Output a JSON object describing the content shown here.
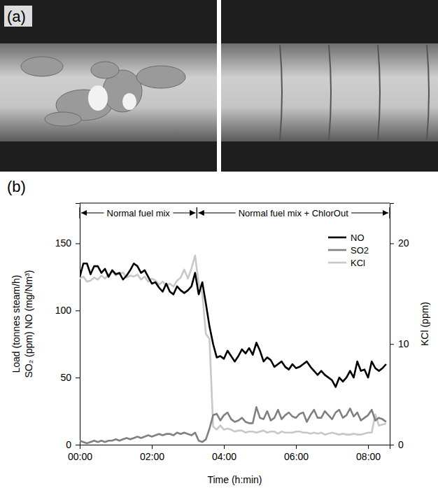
{
  "figure_a": {
    "label": "(a)"
  },
  "chart_data": {
    "type": "line",
    "panel_label": "(b)",
    "xlabel": "Time (h:min)",
    "ylabel": [
      "Load (tonnes steam/h)",
      "SO₂ (ppm) NO (mg/Nm³)"
    ],
    "y2label": "KCl (ppm)",
    "xlim": [
      0,
      8.6
    ],
    "xticks": [
      {
        "value": 0,
        "label": "00:00"
      },
      {
        "value": 2,
        "label": "02:00"
      },
      {
        "value": 4,
        "label": "04:00"
      },
      {
        "value": 6,
        "label": "06:00"
      },
      {
        "value": 8,
        "label": "08:00"
      }
    ],
    "ylim": [
      0,
      180
    ],
    "yticks": [
      0,
      50,
      100,
      150
    ],
    "y2lim": [
      0,
      24
    ],
    "y2ticks": [
      0,
      10,
      20
    ],
    "legend": "upper right",
    "annotations": [
      {
        "text": "Normal fuel mix",
        "x": [
          0,
          3.25
        ]
      },
      {
        "text": "Normal fuel mix + ChlorOut",
        "x": [
          3.25,
          8.6
        ]
      }
    ],
    "x": [
      0,
      0.1,
      0.2,
      0.3,
      0.4,
      0.5,
      0.6,
      0.7,
      0.8,
      0.9,
      1,
      1.1,
      1.2,
      1.3,
      1.4,
      1.5,
      1.6,
      1.7,
      1.8,
      1.9,
      2,
      2.1,
      2.2,
      2.3,
      2.4,
      2.5,
      2.6,
      2.7,
      2.8,
      2.9,
      3,
      3.1,
      3.2,
      3.3,
      3.4,
      3.5,
      3.6,
      3.7,
      3.8,
      3.9,
      4,
      4.1,
      4.2,
      4.3,
      4.4,
      4.5,
      4.6,
      4.7,
      4.8,
      4.9,
      5,
      5.1,
      5.2,
      5.3,
      5.4,
      5.5,
      5.6,
      5.7,
      5.8,
      5.9,
      6,
      6.1,
      6.2,
      6.3,
      6.4,
      6.5,
      6.6,
      6.7,
      6.8,
      6.9,
      7,
      7.1,
      7.2,
      7.3,
      7.4,
      7.5,
      7.6,
      7.7,
      7.8,
      7.9,
      8,
      8.1,
      8.2,
      8.3,
      8.4,
      8.5
    ],
    "series": [
      {
        "name": "NO",
        "color": "#000000",
        "values": [
          125,
          135,
          135,
          127,
          133,
          133,
          128,
          131,
          125,
          130,
          127,
          128,
          123,
          126,
          130,
          135,
          133,
          128,
          130,
          125,
          120,
          121,
          117,
          114,
          120,
          114,
          112,
          118,
          115,
          113,
          115,
          118,
          128,
          112,
          121,
          105,
          88,
          75,
          65,
          66,
          64,
          70,
          66,
          62,
          66,
          71,
          68,
          72,
          67,
          76,
          70,
          62,
          65,
          63,
          58,
          60,
          62,
          58,
          56,
          60,
          57,
          58,
          60,
          62,
          58,
          55,
          52,
          55,
          52,
          50,
          48,
          43,
          50,
          47,
          50,
          55,
          50,
          62,
          55,
          56,
          50,
          62,
          57,
          55,
          57,
          60
        ]
      },
      {
        "name": "SO2",
        "color": "#808080",
        "values": [
          3,
          2,
          1,
          2,
          3,
          2,
          3,
          2,
          3,
          3,
          4,
          3,
          4,
          5,
          4,
          5,
          6,
          5,
          6,
          7,
          6,
          7,
          8,
          7,
          8,
          8,
          7,
          9,
          8,
          9,
          8,
          7,
          9,
          3,
          2,
          4,
          12,
          22,
          23,
          18,
          22,
          24,
          19,
          17,
          18,
          20,
          17,
          16,
          16,
          28,
          20,
          19,
          25,
          18,
          20,
          26,
          19,
          22,
          24,
          21,
          20,
          23,
          24,
          17,
          22,
          26,
          20,
          20,
          25,
          22,
          19,
          24,
          26,
          20,
          22,
          27,
          21,
          24,
          18,
          20,
          22,
          26,
          18,
          20,
          19,
          17
        ]
      },
      {
        "name": "KCl",
        "color": "#c8c8c8",
        "axis": "y2",
        "values": [
          16.5,
          16.7,
          16.2,
          16.3,
          16.6,
          16.4,
          16.8,
          16.5,
          16.9,
          17.2,
          16.8,
          17.0,
          17.1,
          16.6,
          16.8,
          16.7,
          16.9,
          16.4,
          16.7,
          16.2,
          16.5,
          16.3,
          15.9,
          16.2,
          15.8,
          16.0,
          15.7,
          16.3,
          16.6,
          17.4,
          16.5,
          17.5,
          18.8,
          16.0,
          15.0,
          11.0,
          10.5,
          1.8,
          1.5,
          1.9,
          1.5,
          1.6,
          1.5,
          1.3,
          1.4,
          1.4,
          1.2,
          1.3,
          1.3,
          1.2,
          1.3,
          1.4,
          1.2,
          1.3,
          1.3,
          1.1,
          1.3,
          1.2,
          1.2,
          1.2,
          1.3,
          1.3,
          1.2,
          1.2,
          1.1,
          1.2,
          1.1,
          1.2,
          1.0,
          1.1,
          1.2,
          1.1,
          1.0,
          1.1,
          1.0,
          1.0,
          1.1,
          1.0,
          1.0,
          1.1,
          1.2,
          1.2,
          3.0,
          1.9,
          2.0,
          2.1
        ]
      }
    ]
  }
}
